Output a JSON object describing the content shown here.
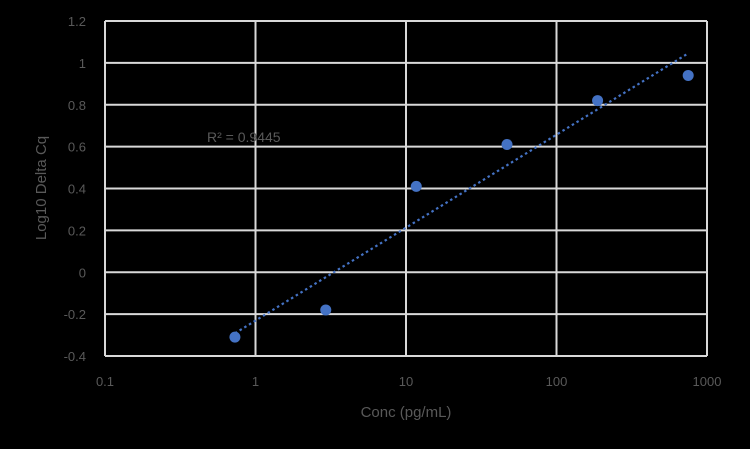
{
  "chart_data": {
    "type": "scatter",
    "title": "",
    "xlabel": "Conc (pg/mL)",
    "ylabel": "Log10 Delta Cq",
    "xscale": "log",
    "xlim": [
      0.1,
      1000
    ],
    "ylim": [
      -0.4,
      1.2
    ],
    "x_ticks": [
      0.1,
      1,
      10,
      100,
      1000
    ],
    "x_tick_labels": [
      "0.1",
      "1",
      "10",
      "100",
      "1000"
    ],
    "y_ticks": [
      -0.4,
      -0.2,
      0,
      0.2,
      0.4,
      0.6,
      0.8,
      1,
      1.2
    ],
    "y_tick_labels": [
      "-0.4",
      "-0.2",
      "0",
      "0.2",
      "0.4",
      "0.6",
      "0.8",
      "1",
      "1.2"
    ],
    "grid": true,
    "legend": null,
    "series": [
      {
        "name": "Log10 Delta Cq",
        "color": "#4472c4",
        "x": [
          0.73,
          2.93,
          11.7,
          46.9,
          187.5,
          750
        ],
        "y": [
          -0.31,
          -0.18,
          0.41,
          0.61,
          0.82,
          0.94
        ]
      }
    ],
    "trendline": {
      "type": "logarithmic",
      "style": "dotted",
      "color": "#4472c4",
      "slope_per_decade": 0.444,
      "intercept": -0.231,
      "x_range": [
        0.73,
        750
      ]
    },
    "annotations": [
      {
        "text": "R² = 0.9445",
        "x": 0.7,
        "y": 0.65
      }
    ]
  },
  "colors": {
    "background": "#000000",
    "gridline": "#d9d9d9",
    "text": "#595959",
    "marker": "#4472c4"
  }
}
